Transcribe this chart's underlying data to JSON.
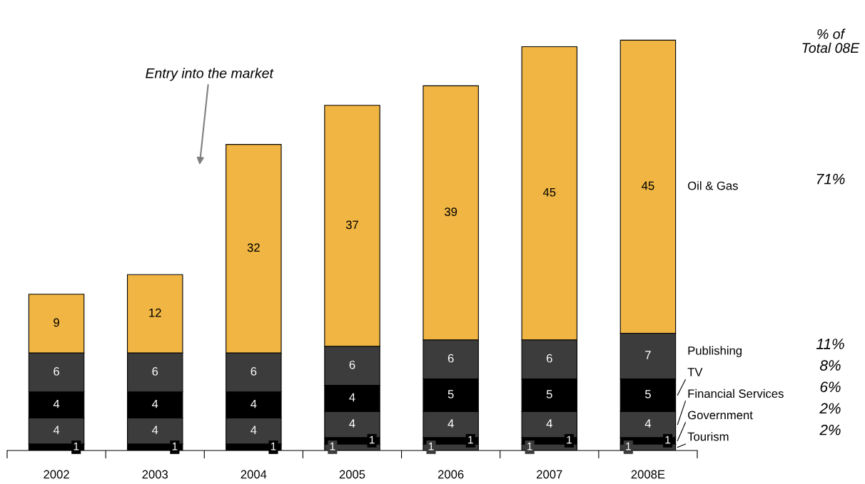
{
  "chart_data": {
    "type": "bar",
    "stacked": true,
    "data_labels": true,
    "legend": "right",
    "grid": false,
    "categories": [
      "2002",
      "2003",
      "2004",
      "2005",
      "2006",
      "2007",
      "2008E"
    ],
    "series": [
      {
        "name": "Tourism",
        "color": "#3c3c3c",
        "values": [
          null,
          null,
          null,
          1,
          1,
          1,
          1
        ]
      },
      {
        "name": "Government",
        "color": "#000000",
        "values": [
          1,
          1,
          1,
          1,
          1,
          1,
          1
        ]
      },
      {
        "name": "Financial Services",
        "color": "#3c3c3c",
        "values": [
          4,
          4,
          4,
          4,
          4,
          4,
          4
        ]
      },
      {
        "name": "TV",
        "color": "#000000",
        "values": [
          4,
          4,
          4,
          4,
          5,
          5,
          5
        ]
      },
      {
        "name": "Publishing",
        "color": "#3c3c3c",
        "values": [
          6,
          6,
          6,
          6,
          6,
          6,
          7
        ]
      },
      {
        "name": "Oil & Gas",
        "color": "#f0b542",
        "values": [
          9,
          12,
          32,
          37,
          39,
          45,
          45
        ]
      }
    ],
    "annotations": [
      "Entry into the market",
      "% of\nTotal 08E",
      "71%",
      "11%",
      "8%",
      "6%",
      "2%",
      "2%"
    ]
  }
}
